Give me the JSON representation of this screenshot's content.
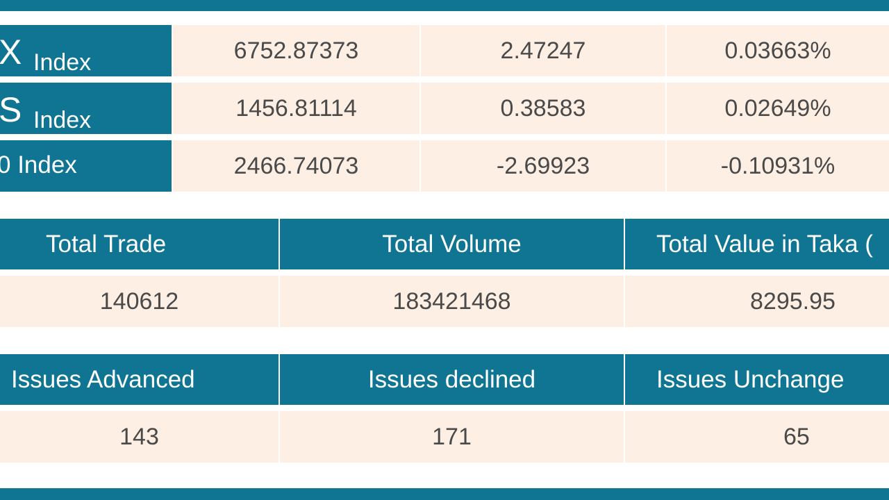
{
  "indices": [
    {
      "name_big": "X",
      "name_small": "Index",
      "value": "6752.87373",
      "change": "2.47247",
      "percent": "0.03663%"
    },
    {
      "name_big": "S",
      "name_small": "Index",
      "value": "1456.81114",
      "change": "0.38583",
      "percent": "0.02649%"
    },
    {
      "name_plain": "0 Index",
      "value": "2466.74073",
      "change": "-2.69923",
      "percent": "-0.10931%"
    }
  ],
  "trade_stats": {
    "headers": [
      "Total Trade",
      "Total Volume",
      "Total Value in Taka ("
    ],
    "values": [
      "140612",
      "183421468",
      "8295.95"
    ]
  },
  "issue_stats": {
    "headers": [
      "Issues Advanced",
      "Issues declined",
      "Issues Unchange"
    ],
    "values": [
      "143",
      "171",
      "65"
    ]
  },
  "colors": {
    "header_bg": "#0f7592",
    "cell_bg": "#fdefe4",
    "cell_text": "#4a4a4a",
    "header_text": "#ffffff"
  }
}
